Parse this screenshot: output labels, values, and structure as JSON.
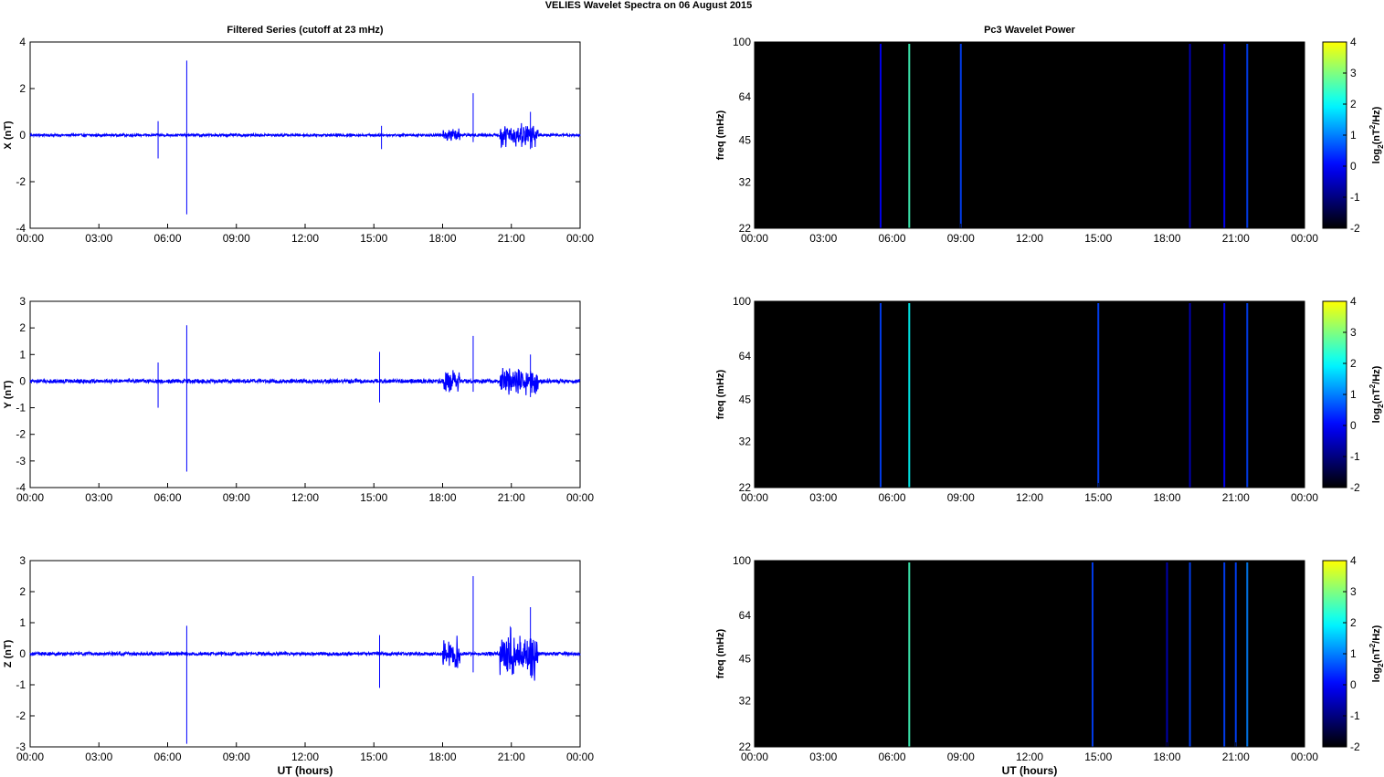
{
  "figure": {
    "suptitle": "VELIES Wavelet Spectra on 06 August    2015",
    "left_title": "Filtered Series (cutoff at 23 mHz)",
    "right_title": "Pc3 Wavelet Power",
    "bottom_xlabel": "UT (hours)"
  },
  "chart_data": [
    {
      "type": "line",
      "panel": "X component filtered series",
      "ylabel": "X (nT)",
      "xlabel": "",
      "x_ticks": [
        "00:00",
        "03:00",
        "06:00",
        "09:00",
        "12:00",
        "15:00",
        "18:00",
        "21:00",
        "00:00"
      ],
      "xlim": [
        "00:00",
        "24:00"
      ],
      "ylim": [
        -4,
        4
      ],
      "y_ticks": [
        -4,
        -2,
        0,
        2,
        4
      ],
      "grid": false,
      "line_color": "#0000ff",
      "baseline_amplitude_nT": 0.05,
      "spikes": [
        {
          "time": "05:35",
          "max": 0.6,
          "min": -1.0
        },
        {
          "time": "06:50",
          "max": 3.2,
          "min": -3.4
        },
        {
          "time": "15:20",
          "max": 0.4,
          "min": -0.6
        },
        {
          "time": "19:20",
          "max": 1.8,
          "min": -0.3
        },
        {
          "time": "21:50",
          "max": 1.0,
          "min": -0.6
        }
      ],
      "active_intervals": [
        {
          "start": "18:00",
          "end": "18:45",
          "amplitude": 0.4
        },
        {
          "start": "20:30",
          "end": "22:10",
          "amplitude": 0.6
        }
      ]
    },
    {
      "type": "line",
      "panel": "Y component filtered series",
      "ylabel": "Y (nT)",
      "xlabel": "",
      "x_ticks": [
        "00:00",
        "03:00",
        "06:00",
        "09:00",
        "12:00",
        "15:00",
        "18:00",
        "21:00",
        "00:00"
      ],
      "xlim": [
        "00:00",
        "24:00"
      ],
      "ylim": [
        -4,
        3
      ],
      "y_ticks": [
        -4,
        -3,
        -2,
        -1,
        0,
        1,
        2,
        3
      ],
      "grid": false,
      "line_color": "#0000ff",
      "baseline_amplitude_nT": 0.07,
      "spikes": [
        {
          "time": "05:35",
          "max": 0.7,
          "min": -1.0
        },
        {
          "time": "06:50",
          "max": 2.1,
          "min": -3.4
        },
        {
          "time": "15:15",
          "max": 1.1,
          "min": -0.8
        },
        {
          "time": "19:20",
          "max": 1.7,
          "min": -0.4
        },
        {
          "time": "21:50",
          "max": 1.0,
          "min": -0.6
        }
      ],
      "active_intervals": [
        {
          "start": "18:00",
          "end": "18:45",
          "amplitude": 0.5
        },
        {
          "start": "20:30",
          "end": "22:10",
          "amplitude": 0.6
        }
      ]
    },
    {
      "type": "line",
      "panel": "Z component filtered series",
      "ylabel": "Z (nT)",
      "xlabel": "UT (hours)",
      "x_ticks": [
        "00:00",
        "03:00",
        "06:00",
        "09:00",
        "12:00",
        "15:00",
        "18:00",
        "21:00",
        "00:00"
      ],
      "xlim": [
        "00:00",
        "24:00"
      ],
      "ylim": [
        -3,
        3
      ],
      "y_ticks": [
        -3,
        -2,
        -1,
        0,
        1,
        2,
        3
      ],
      "grid": false,
      "line_color": "#0000ff",
      "baseline_amplitude_nT": 0.05,
      "spikes": [
        {
          "time": "06:50",
          "max": 0.9,
          "min": -2.9
        },
        {
          "time": "15:15",
          "max": 0.6,
          "min": -1.1
        },
        {
          "time": "19:20",
          "max": 2.5,
          "min": -0.6
        },
        {
          "time": "21:50",
          "max": 1.5,
          "min": -0.7
        }
      ],
      "active_intervals": [
        {
          "start": "18:00",
          "end": "18:45",
          "amplitude": 0.6
        },
        {
          "start": "20:30",
          "end": "22:10",
          "amplitude": 0.9
        }
      ]
    },
    {
      "type": "heatmap",
      "panel": "X component Pc3 wavelet power",
      "ylabel": "freq (mHz)",
      "xlabel": "",
      "x_ticks": [
        "00:00",
        "03:00",
        "06:00",
        "09:00",
        "12:00",
        "15:00",
        "18:00",
        "21:00",
        "00:00"
      ],
      "y_ticks": [
        22,
        32,
        45,
        64,
        100
      ],
      "ylim": [
        22,
        100
      ],
      "y_scale": "log",
      "colorbar": {
        "label": "log2(nT^2/Hz)",
        "ticks": [
          -2,
          -1,
          0,
          1,
          2,
          3,
          4
        ],
        "range": [
          -2,
          4
        ],
        "colormap": "jet"
      },
      "background_value": -2,
      "streaks": [
        {
          "time": "05:30",
          "value": 0.0
        },
        {
          "time": "06:45",
          "value": 2.5
        },
        {
          "time": "09:00",
          "value": 0.5
        },
        {
          "time": "19:00",
          "value": -0.5
        },
        {
          "time": "20:30",
          "value": 0.0
        },
        {
          "time": "21:30",
          "value": 0.5
        }
      ]
    },
    {
      "type": "heatmap",
      "panel": "Y component Pc3 wavelet power",
      "ylabel": "freq (mHz)",
      "xlabel": "",
      "x_ticks": [
        "00:00",
        "03:00",
        "06:00",
        "09:00",
        "12:00",
        "15:00",
        "18:00",
        "21:00",
        "00:00"
      ],
      "y_ticks": [
        22,
        32,
        45,
        64,
        100
      ],
      "ylim": [
        22,
        100
      ],
      "y_scale": "log",
      "colorbar": {
        "label": "log2(nT^2/Hz)",
        "ticks": [
          -2,
          -1,
          0,
          1,
          2,
          3,
          4
        ],
        "range": [
          -2,
          4
        ],
        "colormap": "jet"
      },
      "background_value": -2,
      "streaks": [
        {
          "time": "05:30",
          "value": 0.5
        },
        {
          "time": "06:45",
          "value": 2.0
        },
        {
          "time": "15:00",
          "value": 0.5
        },
        {
          "time": "19:00",
          "value": -0.5
        },
        {
          "time": "20:30",
          "value": 0.0
        },
        {
          "time": "21:30",
          "value": 0.5
        }
      ]
    },
    {
      "type": "heatmap",
      "panel": "Z component Pc3 wavelet power",
      "ylabel": "freq (mHz)",
      "xlabel": "UT (hours)",
      "x_ticks": [
        "00:00",
        "03:00",
        "06:00",
        "09:00",
        "12:00",
        "15:00",
        "18:00",
        "21:00",
        "00:00"
      ],
      "y_ticks": [
        22,
        32,
        45,
        64,
        100
      ],
      "ylim": [
        22,
        100
      ],
      "y_scale": "log",
      "colorbar": {
        "label": "log2(nT^2/Hz)",
        "ticks": [
          -2,
          -1,
          0,
          1,
          2,
          3,
          4
        ],
        "range": [
          -2,
          4
        ],
        "colormap": "jet"
      },
      "background_value": -2,
      "streaks": [
        {
          "time": "06:45",
          "value": 2.5
        },
        {
          "time": "14:45",
          "value": 0.5
        },
        {
          "time": "18:00",
          "value": -0.5
        },
        {
          "time": "19:00",
          "value": 0.5
        },
        {
          "time": "20:30",
          "value": 0.5
        },
        {
          "time": "21:00",
          "value": 0.5
        },
        {
          "time": "21:30",
          "value": 1.0
        }
      ]
    }
  ]
}
